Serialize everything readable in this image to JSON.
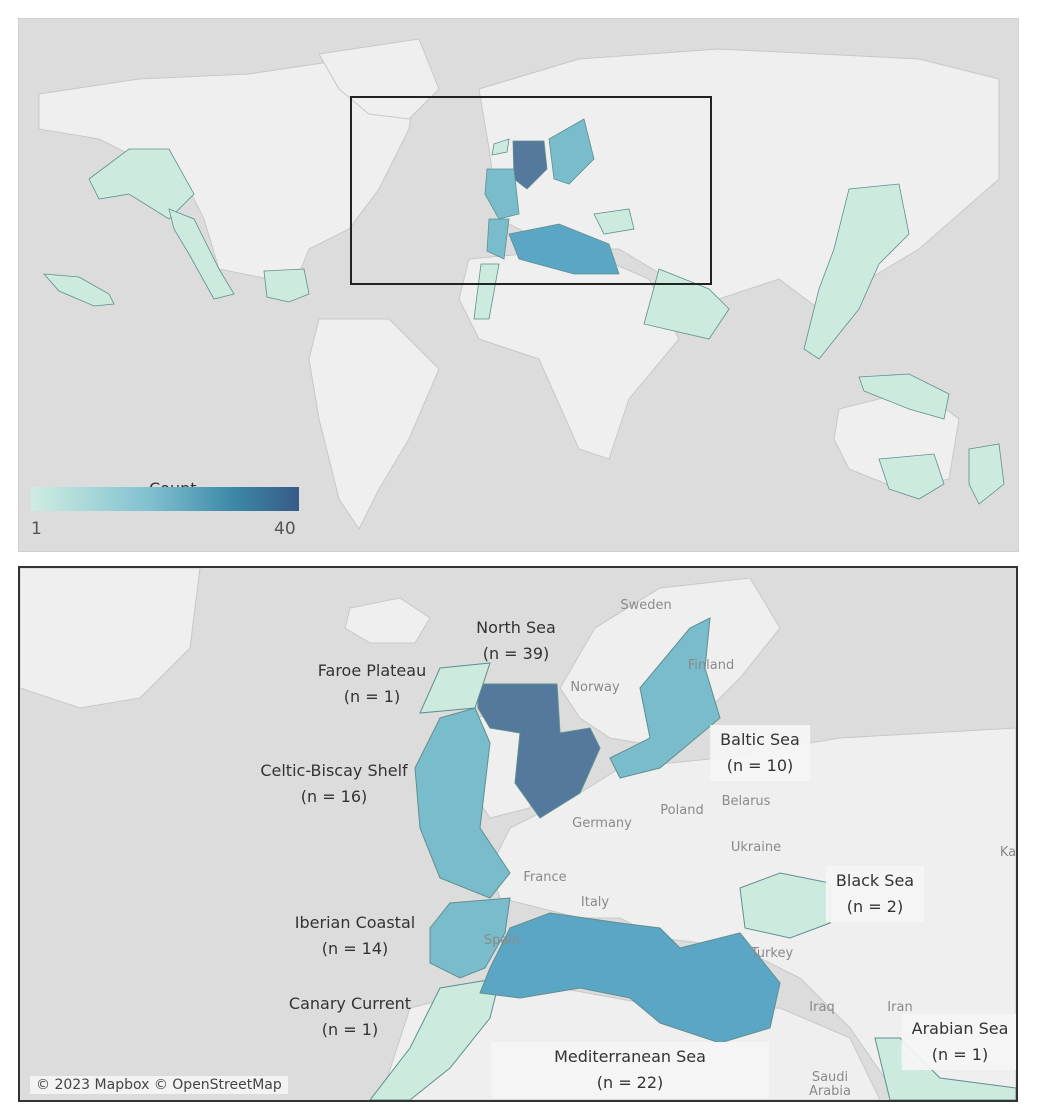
{
  "legend": {
    "title": "Count",
    "min_label": "1",
    "max_label": "40",
    "colors": [
      "#d0ece2",
      "#7fc0cf",
      "#3d89a8",
      "#375b86"
    ]
  },
  "colors": {
    "land": "#f0f0f0",
    "sea": "#dcdcdc",
    "borders": "#bdbdbd",
    "low": "#cdeadf",
    "mid": "#79bccc",
    "midhigh": "#5aa6c4",
    "high": "#54799d"
  },
  "regions": [
    {
      "name": "North Sea",
      "n_label": "(n = 39)",
      "count": 39
    },
    {
      "name": "Faroe Plateau",
      "n_label": "(n = 1)",
      "count": 1
    },
    {
      "name": "Baltic Sea",
      "n_label": "(n = 10)",
      "count": 10
    },
    {
      "name": "Celtic-Biscay Shelf",
      "n_label": "(n = 16)",
      "count": 16
    },
    {
      "name": "Black Sea",
      "n_label": "(n = 2)",
      "count": 2
    },
    {
      "name": "Iberian Coastal",
      "n_label": "(n = 14)",
      "count": 14
    },
    {
      "name": "Canary Current",
      "n_label": "(n = 1)",
      "count": 1
    },
    {
      "name": "Arabian Sea",
      "n_label": "(n = 1)",
      "count": 1
    },
    {
      "name": "Mediterranean Sea",
      "n_label": "(n = 22)",
      "count": 22
    }
  ],
  "places": [
    "Sweden",
    "Norway",
    "Finland",
    "Poland",
    "Belarus",
    "Germany",
    "Ukraine",
    "France",
    "Italy",
    "Spain",
    "Turkey",
    "Iraq",
    "Iran",
    "Saudi Arabia",
    "Ka"
  ],
  "attribution": "© 2023 Mapbox © OpenStreetMap"
}
